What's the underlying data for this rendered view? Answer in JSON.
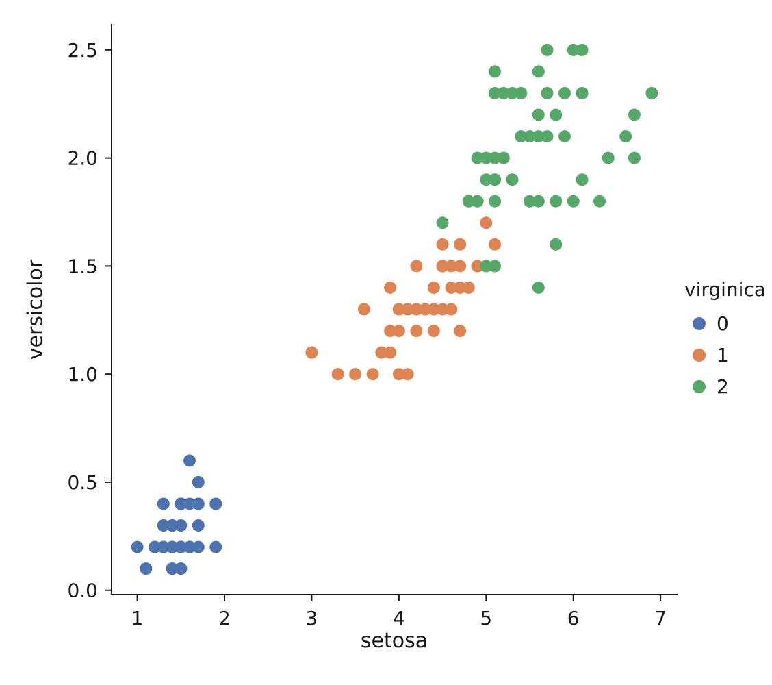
{
  "chart_data": {
    "type": "scatter",
    "title": "",
    "xlabel": "setosa",
    "ylabel": "versicolor",
    "grid": false,
    "xlim": [
      0.705,
      7.195
    ],
    "ylim": [
      -0.02,
      2.62
    ],
    "xticks": [
      1,
      2,
      3,
      4,
      5,
      6,
      7
    ],
    "xtick_labels": [
      "1",
      "2",
      "3",
      "4",
      "5",
      "6",
      "7"
    ],
    "yticks": [
      0.0,
      0.5,
      1.0,
      1.5,
      2.0,
      2.5
    ],
    "ytick_labels": [
      "0.0",
      "0.5",
      "1.0",
      "1.5",
      "2.0",
      "2.5"
    ],
    "legend": {
      "title": "virginica",
      "position": "right-outside"
    },
    "marker_radius_px": 9,
    "axis_color": "#1a1a1a",
    "series": [
      {
        "name": "0",
        "color": "#4C72B0",
        "points": [
          [
            1.4,
            0.2
          ],
          [
            1.4,
            0.2
          ],
          [
            1.3,
            0.2
          ],
          [
            1.5,
            0.2
          ],
          [
            1.4,
            0.2
          ],
          [
            1.7,
            0.4
          ],
          [
            1.4,
            0.3
          ],
          [
            1.5,
            0.2
          ],
          [
            1.4,
            0.2
          ],
          [
            1.5,
            0.1
          ],
          [
            1.5,
            0.2
          ],
          [
            1.6,
            0.2
          ],
          [
            1.4,
            0.1
          ],
          [
            1.1,
            0.1
          ],
          [
            1.2,
            0.2
          ],
          [
            1.5,
            0.4
          ],
          [
            1.3,
            0.4
          ],
          [
            1.4,
            0.3
          ],
          [
            1.7,
            0.3
          ],
          [
            1.5,
            0.3
          ],
          [
            1.7,
            0.2
          ],
          [
            1.5,
            0.4
          ],
          [
            1.0,
            0.2
          ],
          [
            1.7,
            0.5
          ],
          [
            1.9,
            0.2
          ],
          [
            1.6,
            0.2
          ],
          [
            1.6,
            0.4
          ],
          [
            1.5,
            0.2
          ],
          [
            1.4,
            0.2
          ],
          [
            1.6,
            0.2
          ],
          [
            1.6,
            0.2
          ],
          [
            1.5,
            0.4
          ],
          [
            1.5,
            0.1
          ],
          [
            1.4,
            0.2
          ],
          [
            1.5,
            0.2
          ],
          [
            1.2,
            0.2
          ],
          [
            1.3,
            0.2
          ],
          [
            1.4,
            0.1
          ],
          [
            1.3,
            0.2
          ],
          [
            1.5,
            0.2
          ],
          [
            1.3,
            0.3
          ],
          [
            1.3,
            0.3
          ],
          [
            1.3,
            0.2
          ],
          [
            1.6,
            0.6
          ],
          [
            1.9,
            0.4
          ],
          [
            1.4,
            0.3
          ],
          [
            1.6,
            0.2
          ],
          [
            1.4,
            0.2
          ],
          [
            1.5,
            0.2
          ],
          [
            1.4,
            0.2
          ]
        ]
      },
      {
        "name": "1",
        "color": "#DD8452",
        "points": [
          [
            4.7,
            1.4
          ],
          [
            4.5,
            1.5
          ],
          [
            4.9,
            1.5
          ],
          [
            4.0,
            1.3
          ],
          [
            4.6,
            1.5
          ],
          [
            4.5,
            1.3
          ],
          [
            4.7,
            1.6
          ],
          [
            3.3,
            1.0
          ],
          [
            4.6,
            1.3
          ],
          [
            3.9,
            1.4
          ],
          [
            3.5,
            1.0
          ],
          [
            4.2,
            1.5
          ],
          [
            4.0,
            1.0
          ],
          [
            4.7,
            1.4
          ],
          [
            3.6,
            1.3
          ],
          [
            4.4,
            1.4
          ],
          [
            4.5,
            1.5
          ],
          [
            4.1,
            1.0
          ],
          [
            4.5,
            1.5
          ],
          [
            3.9,
            1.1
          ],
          [
            4.8,
            1.8
          ],
          [
            4.0,
            1.3
          ],
          [
            4.9,
            1.5
          ],
          [
            4.7,
            1.2
          ],
          [
            4.3,
            1.3
          ],
          [
            4.4,
            1.4
          ],
          [
            4.8,
            1.4
          ],
          [
            5.0,
            1.7
          ],
          [
            4.5,
            1.5
          ],
          [
            3.5,
            1.0
          ],
          [
            3.8,
            1.1
          ],
          [
            3.7,
            1.0
          ],
          [
            3.9,
            1.2
          ],
          [
            5.1,
            1.6
          ],
          [
            4.5,
            1.5
          ],
          [
            4.5,
            1.6
          ],
          [
            4.7,
            1.5
          ],
          [
            4.4,
            1.3
          ],
          [
            4.1,
            1.3
          ],
          [
            4.0,
            1.3
          ],
          [
            4.4,
            1.2
          ],
          [
            4.6,
            1.4
          ],
          [
            4.0,
            1.2
          ],
          [
            3.3,
            1.0
          ],
          [
            4.2,
            1.3
          ],
          [
            4.2,
            1.2
          ],
          [
            4.2,
            1.3
          ],
          [
            4.3,
            1.3
          ],
          [
            3.0,
            1.1
          ],
          [
            4.1,
            1.3
          ]
        ]
      },
      {
        "name": "2",
        "color": "#55A868",
        "points": [
          [
            6.0,
            2.5
          ],
          [
            5.1,
            1.9
          ],
          [
            5.9,
            2.1
          ],
          [
            5.6,
            1.8
          ],
          [
            5.8,
            2.2
          ],
          [
            6.6,
            2.1
          ],
          [
            4.5,
            1.7
          ],
          [
            6.3,
            1.8
          ],
          [
            5.8,
            1.8
          ],
          [
            6.1,
            2.5
          ],
          [
            5.1,
            2.0
          ],
          [
            5.3,
            1.9
          ],
          [
            5.5,
            2.1
          ],
          [
            5.0,
            2.0
          ],
          [
            5.1,
            2.4
          ],
          [
            5.3,
            2.3
          ],
          [
            5.5,
            1.8
          ],
          [
            6.7,
            2.2
          ],
          [
            6.9,
            2.3
          ],
          [
            5.0,
            1.5
          ],
          [
            5.7,
            2.3
          ],
          [
            4.9,
            2.0
          ],
          [
            6.7,
            2.0
          ],
          [
            4.9,
            1.8
          ],
          [
            5.7,
            2.1
          ],
          [
            6.0,
            1.8
          ],
          [
            4.8,
            1.8
          ],
          [
            4.9,
            1.8
          ],
          [
            5.6,
            2.1
          ],
          [
            5.8,
            1.6
          ],
          [
            6.1,
            1.9
          ],
          [
            6.4,
            2.0
          ],
          [
            5.6,
            2.2
          ],
          [
            5.1,
            1.5
          ],
          [
            5.6,
            1.4
          ],
          [
            6.1,
            2.3
          ],
          [
            5.6,
            2.4
          ],
          [
            5.5,
            1.8
          ],
          [
            4.8,
            1.8
          ],
          [
            5.4,
            2.1
          ],
          [
            5.6,
            2.4
          ],
          [
            5.1,
            2.3
          ],
          [
            5.1,
            1.9
          ],
          [
            5.9,
            2.3
          ],
          [
            5.7,
            2.5
          ],
          [
            5.2,
            2.3
          ],
          [
            5.0,
            1.9
          ],
          [
            5.2,
            2.0
          ],
          [
            5.4,
            2.3
          ],
          [
            5.1,
            1.8
          ]
        ]
      }
    ]
  }
}
